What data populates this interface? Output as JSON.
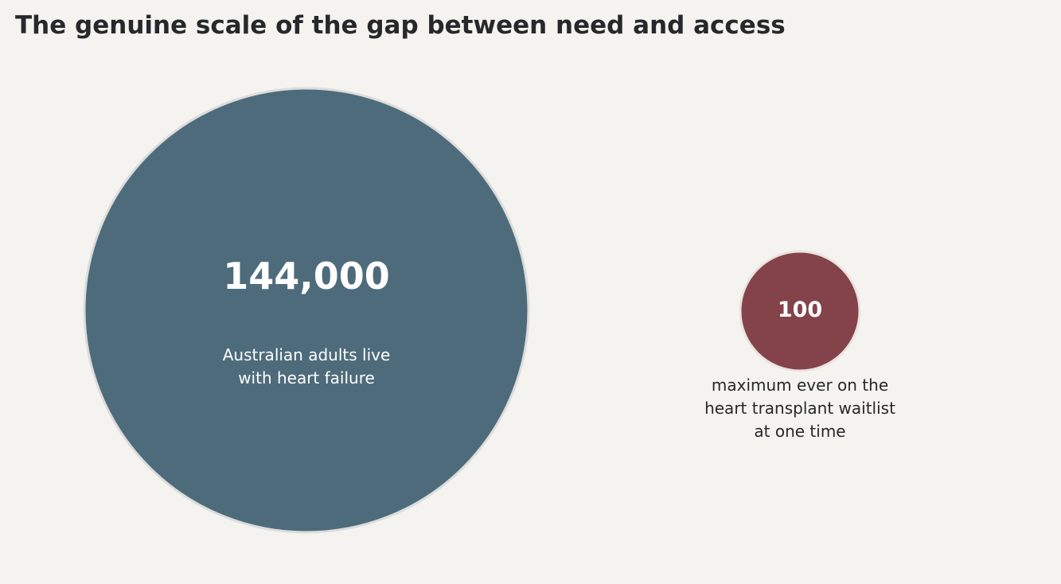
{
  "chart_data": {
    "type": "bubble",
    "title": "The genuine scale of the gap between need and access",
    "categories": [
      "Australian adults live with heart failure",
      "maximum ever on the heart transplant waitlist at one time"
    ],
    "values": [
      144000,
      100
    ],
    "value_labels": [
      "144,000",
      "100"
    ],
    "colors": [
      "#4d6b7b",
      "#84434a"
    ]
  }
}
